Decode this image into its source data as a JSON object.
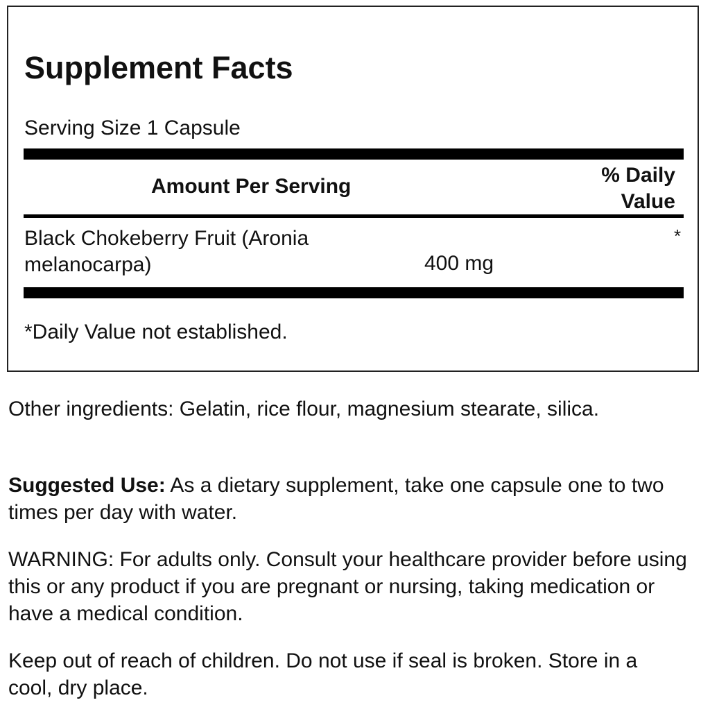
{
  "facts": {
    "title": "Supplement Facts",
    "serving_size": "Serving Size 1 Capsule",
    "amount_header": "Amount Per Serving",
    "dv_header_line1": "% Daily",
    "dv_header_line2": "Value",
    "ingredient_line1": "Black Chokeberry Fruit (Aronia",
    "ingredient_line2": "melanocarpa)",
    "ingredient_amount": "400 mg",
    "ingredient_dv": "*",
    "footnote": "*Daily Value not established."
  },
  "other_ingredients": "Other ingredients: Gelatin, rice flour, magnesium stearate, silica.",
  "suggested_use_label": "Suggested Use:",
  "suggested_use_text": " As a dietary supplement, take one capsule one to two times per day with water.",
  "warning": "WARNING: For adults only. Consult your healthcare provider before using this or any product if you are pregnant or nursing, taking medication or have a medical condition.",
  "storage": "Keep out of reach of children. Do not use if seal is broken. Store in a cool, dry place."
}
